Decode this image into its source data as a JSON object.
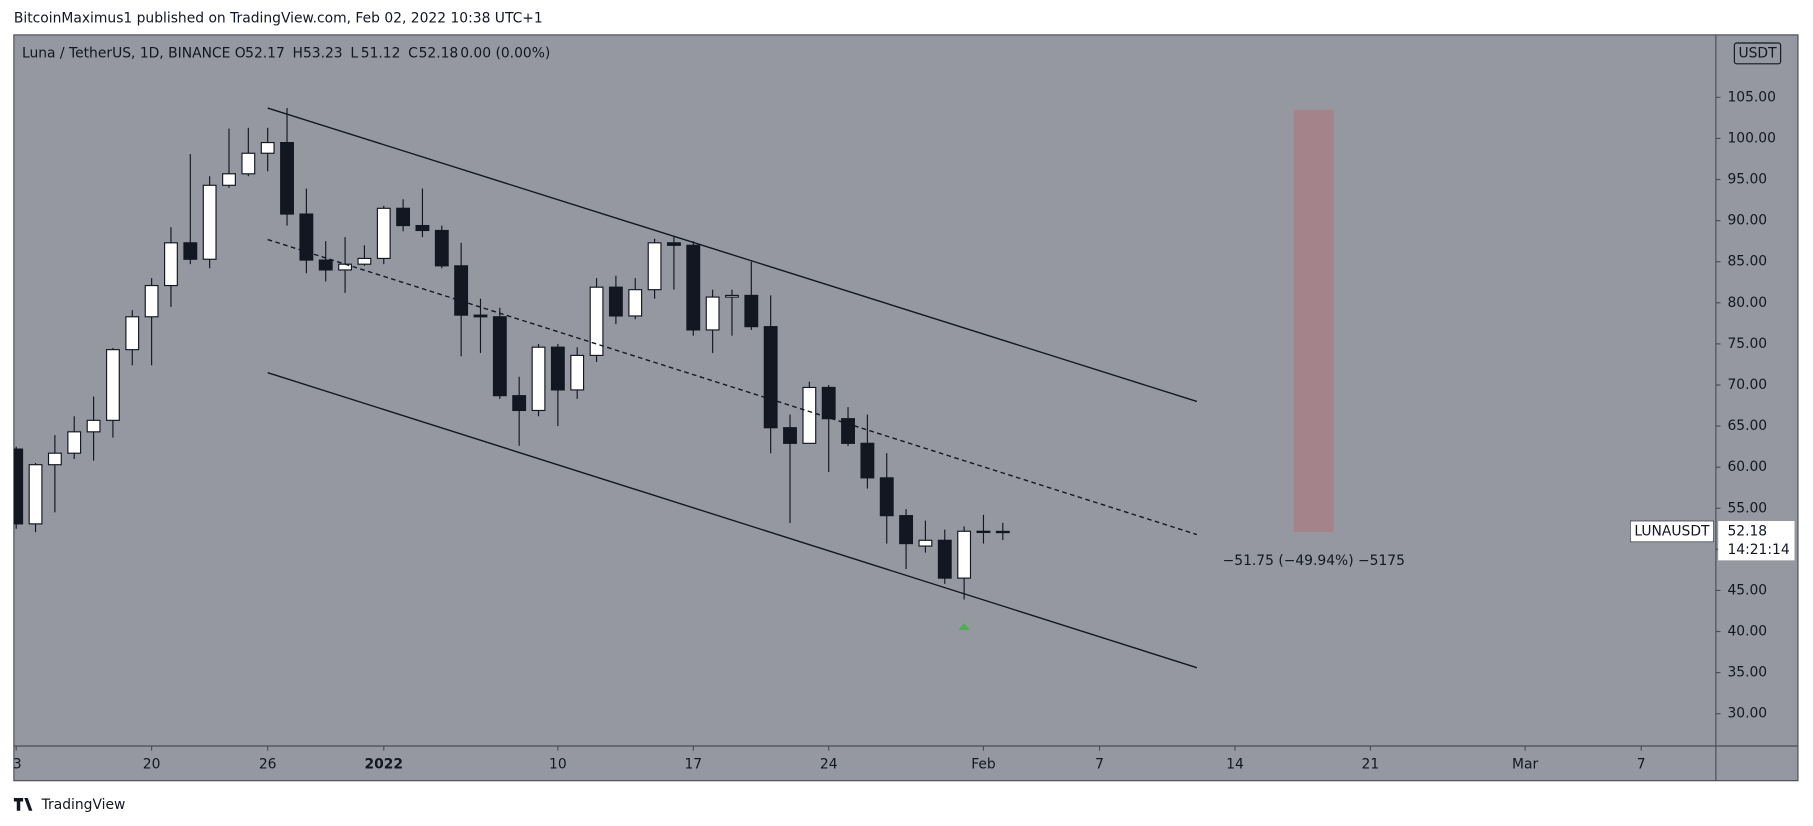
{
  "header": {
    "text": "BitcoinMaximus1 published on TradingView.com, Feb 02, 2022 10:38 UTC+1"
  },
  "footer": {
    "brand": "TradingView"
  },
  "chart_data": {
    "type": "candlestick",
    "title": "Luna / TetherUS, 1D, BINANCE",
    "legend": [
      {
        "label": "O",
        "value": 52.17
      },
      {
        "label": "H",
        "value": 53.23
      },
      {
        "label": "L",
        "value": 51.12
      },
      {
        "label": "C",
        "value": 52.18
      }
    ],
    "change": "0.00 (0.00%)",
    "currency": "USDT",
    "series": {
      "up_color": "#ffffff",
      "down_color": "#131722",
      "wick_color": "#131722",
      "open": [
        62.2,
        53.1,
        60.3,
        61.7,
        64.3,
        65.7,
        74.3,
        78.3,
        82.1,
        87.3,
        85.3,
        94.3,
        95.7,
        98.2,
        99.5,
        90.8,
        85.2,
        84.0,
        84.7,
        85.4,
        91.5,
        89.4,
        88.8,
        84.5,
        78.5,
        78.3,
        68.7,
        66.9,
        74.6,
        69.4,
        73.6,
        81.9,
        78.4,
        81.6,
        87.3,
        87.0,
        76.7,
        80.7,
        80.9,
        77.1,
        64.8,
        62.9,
        69.7,
        65.9,
        62.9,
        58.7,
        54.1,
        50.4,
        51.1,
        46.5,
        52.2,
        52.17
      ],
      "high": [
        62.5,
        60.5,
        63.9,
        66.2,
        68.6,
        74.5,
        79.1,
        83.0,
        89.2,
        98.1,
        95.4,
        101.2,
        101.3,
        101.3,
        103.7,
        93.9,
        87.5,
        88.0,
        87.0,
        91.8,
        92.6,
        93.9,
        89.4,
        87.3,
        80.5,
        79.4,
        71.0,
        75.0,
        75.0,
        74.6,
        83.0,
        83.3,
        83.0,
        87.8,
        88.0,
        87.5,
        81.6,
        81.6,
        85.0,
        80.9,
        66.4,
        70.4,
        70.0,
        67.3,
        66.4,
        61.7,
        54.9,
        53.5,
        52.4,
        52.8,
        54.2,
        53.23
      ],
      "low": [
        52.5,
        52.1,
        54.5,
        61.0,
        60.8,
        63.6,
        72.4,
        72.4,
        79.5,
        84.7,
        84.2,
        94.0,
        95.4,
        96.0,
        89.4,
        83.6,
        82.6,
        81.2,
        84.5,
        84.7,
        88.7,
        88.0,
        84.2,
        73.5,
        73.9,
        68.3,
        62.6,
        66.2,
        65.0,
        68.3,
        72.8,
        77.4,
        78.0,
        80.5,
        81.6,
        76.0,
        73.9,
        76.0,
        76.7,
        61.7,
        53.2,
        62.9,
        59.4,
        62.6,
        57.4,
        50.7,
        47.6,
        49.6,
        45.8,
        43.9,
        50.7,
        51.12
      ],
      "close": [
        53.1,
        60.3,
        61.7,
        64.3,
        65.7,
        74.3,
        78.3,
        82.1,
        87.3,
        85.3,
        94.3,
        95.7,
        98.2,
        99.5,
        90.8,
        85.2,
        84.0,
        84.7,
        85.4,
        91.5,
        89.4,
        88.8,
        84.5,
        78.5,
        78.3,
        68.7,
        66.9,
        74.6,
        69.4,
        73.6,
        81.9,
        78.4,
        81.6,
        87.3,
        87.0,
        76.7,
        80.7,
        80.9,
        77.1,
        64.8,
        62.9,
        69.7,
        65.9,
        62.9,
        58.7,
        54.1,
        50.7,
        51.1,
        46.5,
        52.2,
        52.2,
        52.18
      ]
    },
    "xlim": [
      -0.12,
      87.86
    ],
    "xticks": [
      {
        "value": 0,
        "label": "3"
      },
      {
        "value": 7,
        "label": "20"
      },
      {
        "value": 13,
        "label": "26"
      },
      {
        "value": 19,
        "label": "2022"
      },
      {
        "value": 28,
        "label": "10"
      },
      {
        "value": 35,
        "label": "17"
      },
      {
        "value": 42,
        "label": "24"
      },
      {
        "value": 50,
        "label": "Feb"
      },
      {
        "value": 56,
        "label": "7"
      },
      {
        "value": 63,
        "label": "14"
      },
      {
        "value": 70,
        "label": "21"
      },
      {
        "value": 78,
        "label": "Mar"
      },
      {
        "value": 84,
        "label": "7"
      }
    ],
    "ylim": [
      26.07,
      112.6
    ],
    "yticks": [
      {
        "value": 30,
        "label": "30.00"
      },
      {
        "value": 35,
        "label": "35.00"
      },
      {
        "value": 40,
        "label": "40.00"
      },
      {
        "value": 45,
        "label": "45.00"
      },
      {
        "value": 50,
        "label": "50.00"
      },
      {
        "value": 55,
        "label": "55.00"
      },
      {
        "value": 60,
        "label": "60.00"
      },
      {
        "value": 65,
        "label": "65.00"
      },
      {
        "value": 70,
        "label": "70.00"
      },
      {
        "value": 75,
        "label": "75.00"
      },
      {
        "value": 80,
        "label": "80.00"
      },
      {
        "value": 85,
        "label": "85.00"
      },
      {
        "value": 90,
        "label": "90.00"
      },
      {
        "value": 95,
        "label": "95.00"
      },
      {
        "value": 100,
        "label": "100.00"
      },
      {
        "value": 105,
        "label": "105.00"
      }
    ],
    "background": "#9598a1",
    "trendlines": [
      {
        "style": "solid",
        "x": [
          13,
          61.03
        ],
        "y": [
          103.7,
          68.0
        ]
      },
      {
        "style": "dashed",
        "x": [
          13,
          61.03
        ],
        "y": [
          87.7,
          51.8
        ]
      },
      {
        "style": "solid",
        "x": [
          13,
          61.03
        ],
        "y": [
          71.5,
          35.6
        ]
      }
    ],
    "measure": {
      "x": [
        66.05,
        68.1
      ],
      "y": [
        52.1,
        103.5
      ],
      "color": "#a5838b",
      "label": "−51.75 (−49.94%) −5175"
    },
    "marker": {
      "x": 49,
      "y": 40.6,
      "color": "#4caf50"
    },
    "price_label": {
      "name": "LUNAUSDT",
      "value": 52.18,
      "countdown": "14:21:14"
    }
  }
}
